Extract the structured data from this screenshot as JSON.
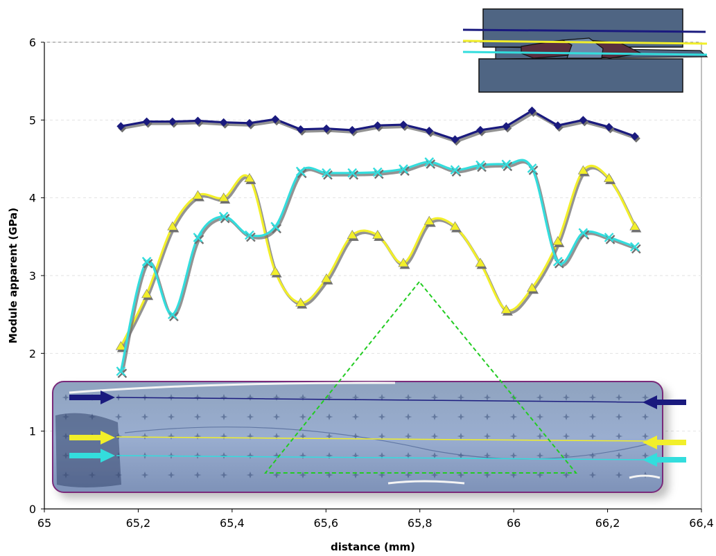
{
  "chart_data": {
    "type": "line",
    "title": "",
    "xlabel": "distance (mm)",
    "ylabel": "Module apparent (GPa)",
    "xlim": [
      65,
      66.4
    ],
    "ylim": [
      0,
      6
    ],
    "x_ticks": [
      65,
      65.2,
      65.4,
      65.6,
      65.8,
      66,
      66.2,
      66.4
    ],
    "x_tick_labels": [
      "65",
      "65,2",
      "65,4",
      "65,6",
      "65,8",
      "66",
      "66,2",
      "66,4"
    ],
    "y_ticks": [
      0,
      1,
      2,
      3,
      4,
      5,
      6
    ],
    "y_tick_labels": [
      "0",
      "1",
      "2",
      "3",
      "4",
      "5",
      "6"
    ],
    "grid": "horizontal dashed",
    "legend": "none",
    "series": [
      {
        "color": "#1a1a7e",
        "marker": "diamond",
        "x": [
          65.163,
          65.218,
          65.273,
          65.327,
          65.382,
          65.437,
          65.492,
          65.546,
          65.601,
          65.656,
          65.71,
          65.765,
          65.82,
          65.875,
          65.929,
          65.984,
          66.039,
          66.094,
          66.148,
          66.203,
          66.258
        ],
        "y": [
          4.92,
          4.98,
          4.98,
          4.99,
          4.97,
          4.96,
          5.01,
          4.88,
          4.89,
          4.87,
          4.93,
          4.94,
          4.86,
          4.75,
          4.87,
          4.92,
          5.12,
          4.93,
          5.0,
          4.91,
          4.79
        ]
      },
      {
        "color": "#f2ef2a",
        "marker": "triangle",
        "x": [
          65.163,
          65.218,
          65.273,
          65.327,
          65.382,
          65.437,
          65.492,
          65.546,
          65.601,
          65.656,
          65.71,
          65.765,
          65.82,
          65.875,
          65.929,
          65.984,
          66.039,
          66.094,
          66.148,
          66.203,
          66.258
        ],
        "y": [
          2.09,
          2.76,
          3.63,
          4.03,
          4.0,
          4.25,
          3.05,
          2.65,
          2.96,
          3.52,
          3.52,
          3.16,
          3.7,
          3.63,
          3.16,
          2.56,
          2.84,
          3.44,
          4.35,
          4.25,
          3.63
        ]
      },
      {
        "color": "#33dddd",
        "marker": "x",
        "x": [
          65.163,
          65.218,
          65.273,
          65.327,
          65.382,
          65.437,
          65.492,
          65.546,
          65.601,
          65.656,
          65.71,
          65.765,
          65.82,
          65.875,
          65.929,
          65.984,
          66.039,
          66.094,
          66.148,
          66.203,
          66.258
        ],
        "y": [
          1.77,
          3.18,
          2.5,
          3.49,
          3.76,
          3.52,
          3.63,
          4.34,
          4.32,
          4.32,
          4.33,
          4.37,
          4.46,
          4.36,
          4.42,
          4.43,
          4.38,
          3.18,
          3.55,
          3.49,
          3.37
        ]
      }
    ],
    "overlays": {
      "triangle_guide_color": "#22cc22",
      "arrow_colors": [
        "#1a1a7e",
        "#f2ef2a",
        "#33dddd"
      ]
    }
  }
}
